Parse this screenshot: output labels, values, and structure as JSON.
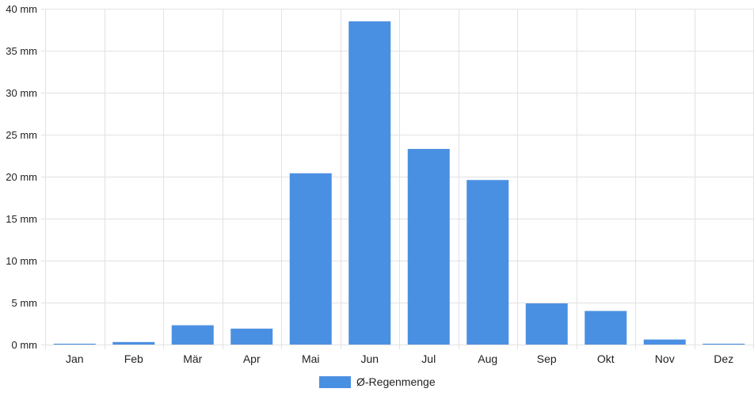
{
  "chart_data": {
    "type": "bar",
    "categories": [
      "Jan",
      "Feb",
      "Mär",
      "Apr",
      "Mai",
      "Jun",
      "Jul",
      "Aug",
      "Sep",
      "Okt",
      "Nov",
      "Dez"
    ],
    "series": [
      {
        "name": "Ø-Regenmenge",
        "values": [
          0.1,
          0.3,
          2.3,
          1.9,
          20.4,
          38.5,
          23.3,
          19.6,
          4.9,
          4.0,
          0.6,
          0.1
        ],
        "color": "#4a90e2"
      }
    ],
    "ylim": [
      0,
      40
    ],
    "yticks": [
      0,
      5,
      10,
      15,
      20,
      25,
      30,
      35,
      40
    ],
    "ytick_labels": [
      "0 mm",
      "5 mm",
      "10 mm",
      "15 mm",
      "20 mm",
      "25 mm",
      "30 mm",
      "35 mm",
      "40 mm"
    ],
    "grid": true,
    "legend_position": "bottom"
  }
}
